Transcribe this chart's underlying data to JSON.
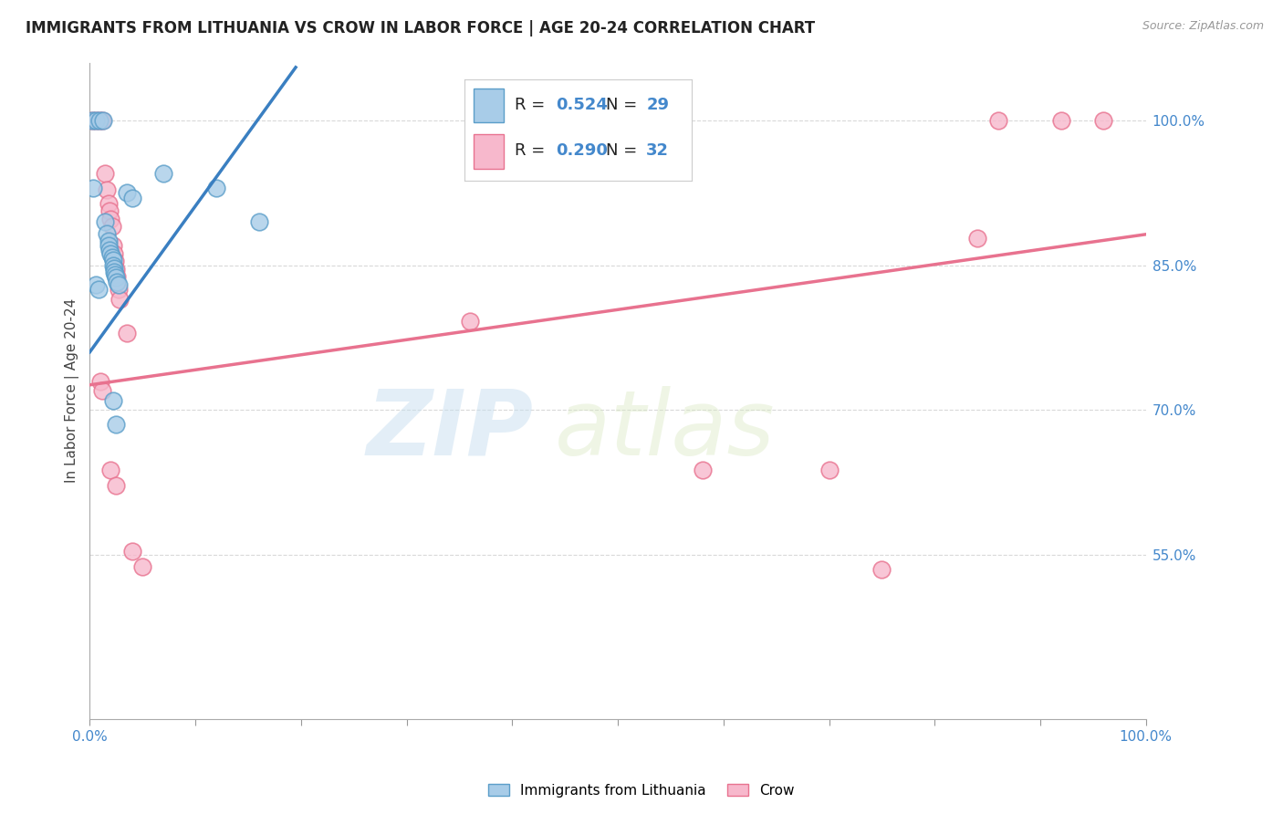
{
  "title": "IMMIGRANTS FROM LITHUANIA VS CROW IN LABOR FORCE | AGE 20-24 CORRELATION CHART",
  "source": "Source: ZipAtlas.com",
  "ylabel": "In Labor Force | Age 20-24",
  "xlim": [
    0,
    1
  ],
  "ylim": [
    0.38,
    1.06
  ],
  "yticks": [
    0.55,
    0.7,
    0.85,
    1.0
  ],
  "ytick_labels": [
    "55.0%",
    "70.0%",
    "85.0%",
    "100.0%"
  ],
  "xticks": [
    0.0,
    0.1,
    0.2,
    0.3,
    0.4,
    0.5,
    0.6,
    0.7,
    0.8,
    0.9,
    1.0
  ],
  "legend_R_blue": "0.524",
  "legend_N_blue": "29",
  "legend_R_pink": "0.290",
  "legend_N_pink": "32",
  "legend_label_blue": "Immigrants from Lithuania",
  "legend_label_pink": "Crow",
  "blue_color": "#a8cce8",
  "pink_color": "#f7b8cc",
  "blue_edge_color": "#5b9ec9",
  "pink_edge_color": "#e8728f",
  "blue_line_color": "#3a7fc1",
  "pink_line_color": "#e8728f",
  "blue_scatter": [
    [
      0.002,
      1.0
    ],
    [
      0.006,
      1.0
    ],
    [
      0.009,
      1.0
    ],
    [
      0.013,
      1.0
    ],
    [
      0.003,
      0.93
    ],
    [
      0.035,
      0.925
    ],
    [
      0.04,
      0.92
    ],
    [
      0.07,
      0.945
    ],
    [
      0.12,
      0.93
    ],
    [
      0.16,
      0.895
    ],
    [
      0.014,
      0.895
    ],
    [
      0.016,
      0.883
    ],
    [
      0.018,
      0.875
    ],
    [
      0.018,
      0.87
    ],
    [
      0.019,
      0.866
    ],
    [
      0.02,
      0.862
    ],
    [
      0.021,
      0.858
    ],
    [
      0.022,
      0.855
    ],
    [
      0.022,
      0.85
    ],
    [
      0.023,
      0.847
    ],
    [
      0.023,
      0.843
    ],
    [
      0.024,
      0.84
    ],
    [
      0.025,
      0.837
    ],
    [
      0.026,
      0.833
    ],
    [
      0.027,
      0.83
    ],
    [
      0.006,
      0.83
    ],
    [
      0.008,
      0.825
    ],
    [
      0.022,
      0.71
    ],
    [
      0.025,
      0.685
    ]
  ],
  "pink_scatter": [
    [
      0.002,
      1.0
    ],
    [
      0.006,
      1.0
    ],
    [
      0.009,
      1.0
    ],
    [
      0.012,
      1.0
    ],
    [
      0.86,
      1.0
    ],
    [
      0.92,
      1.0
    ],
    [
      0.96,
      1.0
    ],
    [
      0.014,
      0.945
    ],
    [
      0.016,
      0.928
    ],
    [
      0.018,
      0.914
    ],
    [
      0.019,
      0.906
    ],
    [
      0.02,
      0.898
    ],
    [
      0.021,
      0.89
    ],
    [
      0.022,
      0.87
    ],
    [
      0.023,
      0.862
    ],
    [
      0.024,
      0.854
    ],
    [
      0.025,
      0.846
    ],
    [
      0.026,
      0.838
    ],
    [
      0.027,
      0.825
    ],
    [
      0.028,
      0.815
    ],
    [
      0.01,
      0.73
    ],
    [
      0.012,
      0.72
    ],
    [
      0.02,
      0.638
    ],
    [
      0.025,
      0.622
    ],
    [
      0.035,
      0.78
    ],
    [
      0.36,
      0.792
    ],
    [
      0.58,
      0.638
    ],
    [
      0.7,
      0.638
    ],
    [
      0.75,
      0.535
    ],
    [
      0.84,
      0.878
    ],
    [
      0.04,
      0.554
    ],
    [
      0.05,
      0.538
    ]
  ],
  "blue_trendline_x": [
    0.0,
    0.195
  ],
  "blue_trendline_y": [
    0.76,
    1.055
  ],
  "pink_trendline_x": [
    0.0,
    1.0
  ],
  "pink_trendline_y": [
    0.726,
    0.882
  ],
  "watermark_zip": "ZIP",
  "watermark_atlas": "atlas",
  "background_color": "#ffffff",
  "grid_color": "#d0d0d0"
}
